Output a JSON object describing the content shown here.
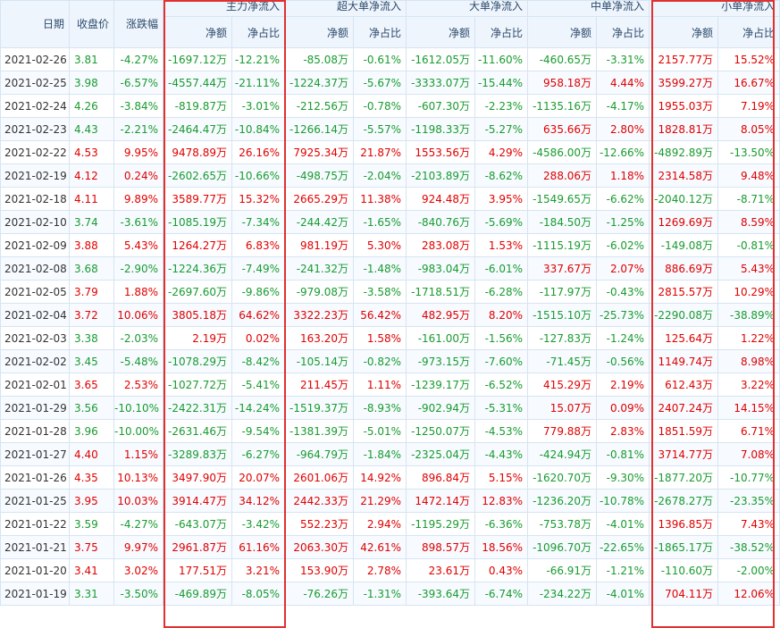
{
  "header": {
    "date": "日期",
    "price": "收盘价",
    "change": "涨跌幅",
    "groups": [
      "主力净流入",
      "超大单净流入",
      "大单净流入",
      "中单净流入",
      "小单净流入"
    ],
    "sub_amount": "净额",
    "sub_ratio": "净占比"
  },
  "colors": {
    "up": "#e00000",
    "down": "#189b30",
    "highlight": "#e03030"
  },
  "rows": [
    {
      "date": "2021-02-26",
      "price": "3.81",
      "change": "-4.27%",
      "m": [
        "-1697.12万",
        "-12.21%"
      ],
      "xl": [
        "-85.08万",
        "-0.61%"
      ],
      "l": [
        "-1612.05万",
        "-11.60%"
      ],
      "md": [
        "-460.65万",
        "-3.31%"
      ],
      "s": [
        "2157.77万",
        "15.52%"
      ]
    },
    {
      "date": "2021-02-25",
      "price": "3.98",
      "change": "-6.57%",
      "m": [
        "-4557.44万",
        "-21.11%"
      ],
      "xl": [
        "-1224.37万",
        "-5.67%"
      ],
      "l": [
        "-3333.07万",
        "-15.44%"
      ],
      "md": [
        "958.18万",
        "4.44%"
      ],
      "s": [
        "3599.27万",
        "16.67%"
      ]
    },
    {
      "date": "2021-02-24",
      "price": "4.26",
      "change": "-3.84%",
      "m": [
        "-819.87万",
        "-3.01%"
      ],
      "xl": [
        "-212.56万",
        "-0.78%"
      ],
      "l": [
        "-607.30万",
        "-2.23%"
      ],
      "md": [
        "-1135.16万",
        "-4.17%"
      ],
      "s": [
        "1955.03万",
        "7.19%"
      ]
    },
    {
      "date": "2021-02-23",
      "price": "4.43",
      "change": "-2.21%",
      "m": [
        "-2464.47万",
        "-10.84%"
      ],
      "xl": [
        "-1266.14万",
        "-5.57%"
      ],
      "l": [
        "-1198.33万",
        "-5.27%"
      ],
      "md": [
        "635.66万",
        "2.80%"
      ],
      "s": [
        "1828.81万",
        "8.05%"
      ]
    },
    {
      "date": "2021-02-22",
      "price": "4.53",
      "change": "9.95%",
      "m": [
        "9478.89万",
        "26.16%"
      ],
      "xl": [
        "7925.34万",
        "21.87%"
      ],
      "l": [
        "1553.56万",
        "4.29%"
      ],
      "md": [
        "-4586.00万",
        "-12.66%"
      ],
      "s": [
        "-4892.89万",
        "-13.50%"
      ]
    },
    {
      "date": "2021-02-19",
      "price": "4.12",
      "change": "0.24%",
      "m": [
        "-2602.65万",
        "-10.66%"
      ],
      "xl": [
        "-498.75万",
        "-2.04%"
      ],
      "l": [
        "-2103.89万",
        "-8.62%"
      ],
      "md": [
        "288.06万",
        "1.18%"
      ],
      "s": [
        "2314.58万",
        "9.48%"
      ]
    },
    {
      "date": "2021-02-18",
      "price": "4.11",
      "change": "9.89%",
      "m": [
        "3589.77万",
        "15.32%"
      ],
      "xl": [
        "2665.29万",
        "11.38%"
      ],
      "l": [
        "924.48万",
        "3.95%"
      ],
      "md": [
        "-1549.65万",
        "-6.62%"
      ],
      "s": [
        "-2040.12万",
        "-8.71%"
      ]
    },
    {
      "date": "2021-02-10",
      "price": "3.74",
      "change": "-3.61%",
      "m": [
        "-1085.19万",
        "-7.34%"
      ],
      "xl": [
        "-244.42万",
        "-1.65%"
      ],
      "l": [
        "-840.76万",
        "-5.69%"
      ],
      "md": [
        "-184.50万",
        "-1.25%"
      ],
      "s": [
        "1269.69万",
        "8.59%"
      ]
    },
    {
      "date": "2021-02-09",
      "price": "3.88",
      "change": "5.43%",
      "m": [
        "1264.27万",
        "6.83%"
      ],
      "xl": [
        "981.19万",
        "5.30%"
      ],
      "l": [
        "283.08万",
        "1.53%"
      ],
      "md": [
        "-1115.19万",
        "-6.02%"
      ],
      "s": [
        "-149.08万",
        "-0.81%"
      ]
    },
    {
      "date": "2021-02-08",
      "price": "3.68",
      "change": "-2.90%",
      "m": [
        "-1224.36万",
        "-7.49%"
      ],
      "xl": [
        "-241.32万",
        "-1.48%"
      ],
      "l": [
        "-983.04万",
        "-6.01%"
      ],
      "md": [
        "337.67万",
        "2.07%"
      ],
      "s": [
        "886.69万",
        "5.43%"
      ]
    },
    {
      "date": "2021-02-05",
      "price": "3.79",
      "change": "1.88%",
      "m": [
        "-2697.60万",
        "-9.86%"
      ],
      "xl": [
        "-979.08万",
        "-3.58%"
      ],
      "l": [
        "-1718.51万",
        "-6.28%"
      ],
      "md": [
        "-117.97万",
        "-0.43%"
      ],
      "s": [
        "2815.57万",
        "10.29%"
      ]
    },
    {
      "date": "2021-02-04",
      "price": "3.72",
      "change": "10.06%",
      "m": [
        "3805.18万",
        "64.62%"
      ],
      "xl": [
        "3322.23万",
        "56.42%"
      ],
      "l": [
        "482.95万",
        "8.20%"
      ],
      "md": [
        "-1515.10万",
        "-25.73%"
      ],
      "s": [
        "-2290.08万",
        "-38.89%"
      ]
    },
    {
      "date": "2021-02-03",
      "price": "3.38",
      "change": "-2.03%",
      "m": [
        "2.19万",
        "0.02%"
      ],
      "xl": [
        "163.20万",
        "1.58%"
      ],
      "l": [
        "-161.00万",
        "-1.56%"
      ],
      "md": [
        "-127.83万",
        "-1.24%"
      ],
      "s": [
        "125.64万",
        "1.22%"
      ]
    },
    {
      "date": "2021-02-02",
      "price": "3.45",
      "change": "-5.48%",
      "m": [
        "-1078.29万",
        "-8.42%"
      ],
      "xl": [
        "-105.14万",
        "-0.82%"
      ],
      "l": [
        "-973.15万",
        "-7.60%"
      ],
      "md": [
        "-71.45万",
        "-0.56%"
      ],
      "s": [
        "1149.74万",
        "8.98%"
      ]
    },
    {
      "date": "2021-02-01",
      "price": "3.65",
      "change": "2.53%",
      "m": [
        "-1027.72万",
        "-5.41%"
      ],
      "xl": [
        "211.45万",
        "1.11%"
      ],
      "l": [
        "-1239.17万",
        "-6.52%"
      ],
      "md": [
        "415.29万",
        "2.19%"
      ],
      "s": [
        "612.43万",
        "3.22%"
      ]
    },
    {
      "date": "2021-01-29",
      "price": "3.56",
      "change": "-10.10%",
      "m": [
        "-2422.31万",
        "-14.24%"
      ],
      "xl": [
        "-1519.37万",
        "-8.93%"
      ],
      "l": [
        "-902.94万",
        "-5.31%"
      ],
      "md": [
        "15.07万",
        "0.09%"
      ],
      "s": [
        "2407.24万",
        "14.15%"
      ]
    },
    {
      "date": "2021-01-28",
      "price": "3.96",
      "change": "-10.00%",
      "m": [
        "-2631.46万",
        "-9.54%"
      ],
      "xl": [
        "-1381.39万",
        "-5.01%"
      ],
      "l": [
        "-1250.07万",
        "-4.53%"
      ],
      "md": [
        "779.88万",
        "2.83%"
      ],
      "s": [
        "1851.59万",
        "6.71%"
      ]
    },
    {
      "date": "2021-01-27",
      "price": "4.40",
      "change": "1.15%",
      "m": [
        "-3289.83万",
        "-6.27%"
      ],
      "xl": [
        "-964.79万",
        "-1.84%"
      ],
      "l": [
        "-2325.04万",
        "-4.43%"
      ],
      "md": [
        "-424.94万",
        "-0.81%"
      ],
      "s": [
        "3714.77万",
        "7.08%"
      ]
    },
    {
      "date": "2021-01-26",
      "price": "4.35",
      "change": "10.13%",
      "m": [
        "3497.90万",
        "20.07%"
      ],
      "xl": [
        "2601.06万",
        "14.92%"
      ],
      "l": [
        "896.84万",
        "5.15%"
      ],
      "md": [
        "-1620.70万",
        "-9.30%"
      ],
      "s": [
        "-1877.20万",
        "-10.77%"
      ]
    },
    {
      "date": "2021-01-25",
      "price": "3.95",
      "change": "10.03%",
      "m": [
        "3914.47万",
        "34.12%"
      ],
      "xl": [
        "2442.33万",
        "21.29%"
      ],
      "l": [
        "1472.14万",
        "12.83%"
      ],
      "md": [
        "-1236.20万",
        "-10.78%"
      ],
      "s": [
        "-2678.27万",
        "-23.35%"
      ]
    },
    {
      "date": "2021-01-22",
      "price": "3.59",
      "change": "-4.27%",
      "m": [
        "-643.07万",
        "-3.42%"
      ],
      "xl": [
        "552.23万",
        "2.94%"
      ],
      "l": [
        "-1195.29万",
        "-6.36%"
      ],
      "md": [
        "-753.78万",
        "-4.01%"
      ],
      "s": [
        "1396.85万",
        "7.43%"
      ]
    },
    {
      "date": "2021-01-21",
      "price": "3.75",
      "change": "9.97%",
      "m": [
        "2961.87万",
        "61.16%"
      ],
      "xl": [
        "2063.30万",
        "42.61%"
      ],
      "l": [
        "898.57万",
        "18.56%"
      ],
      "md": [
        "-1096.70万",
        "-22.65%"
      ],
      "s": [
        "-1865.17万",
        "-38.52%"
      ]
    },
    {
      "date": "2021-01-20",
      "price": "3.41",
      "change": "3.02%",
      "m": [
        "177.51万",
        "3.21%"
      ],
      "xl": [
        "153.90万",
        "2.78%"
      ],
      "l": [
        "23.61万",
        "0.43%"
      ],
      "md": [
        "-66.91万",
        "-1.21%"
      ],
      "s": [
        "-110.60万",
        "-2.00%"
      ]
    },
    {
      "date": "2021-01-19",
      "price": "3.31",
      "change": "-3.50%",
      "m": [
        "-469.89万",
        "-8.05%"
      ],
      "xl": [
        "-76.26万",
        "-1.31%"
      ],
      "l": [
        "-393.64万",
        "-6.74%"
      ],
      "md": [
        "-234.22万",
        "-4.01%"
      ],
      "s": [
        "704.11万",
        "12.06%"
      ]
    }
  ]
}
